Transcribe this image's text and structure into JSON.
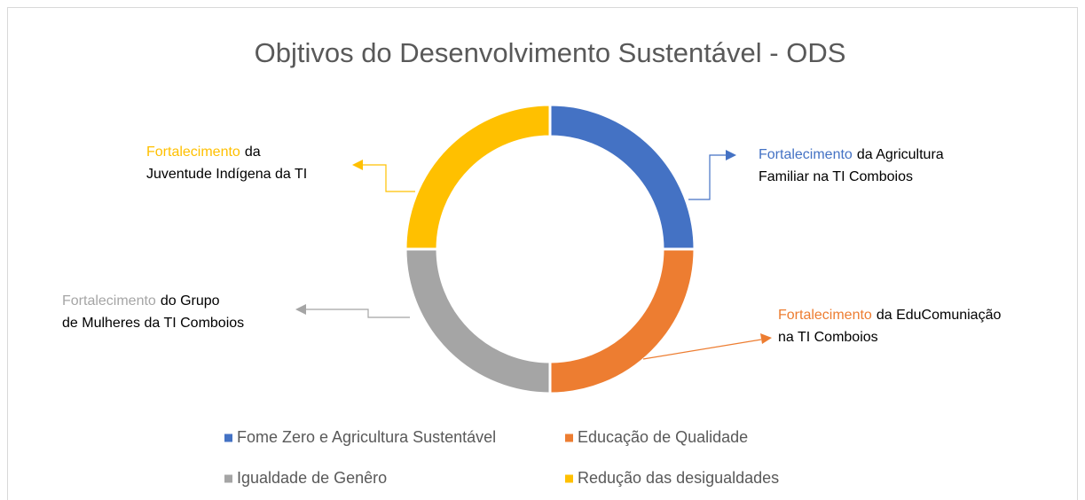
{
  "chart_data": {
    "type": "donut",
    "title": "Objtivos do Desenvolvimento Sustentável - ODS",
    "categories": [
      "Fome Zero e Agricultura Sustentável",
      "Educação de Qualidade",
      "Igualdade de Genêro",
      "Redução das desigualdades"
    ],
    "values": [
      25,
      25,
      25,
      25
    ],
    "colors": [
      "#4472c4",
      "#ed7d31",
      "#a5a5a5",
      "#ffc000"
    ],
    "legend": "bottom",
    "annotations": [
      {
        "lead": "Fortalecimento",
        "rest": "da Agricultura",
        "line2": "Familiar na TI Comboios"
      },
      {
        "lead": "Fortalecimento",
        "rest": "da EduComuniação",
        "line2": "na TI Comboios"
      },
      {
        "lead": "Fortalecimento",
        "rest": "do Grupo",
        "line2": "de Mulheres da TI Comboios"
      },
      {
        "lead": "Fortalecimento",
        "rest": "da",
        "line2": "Juventude Indígena da TI"
      }
    ]
  }
}
